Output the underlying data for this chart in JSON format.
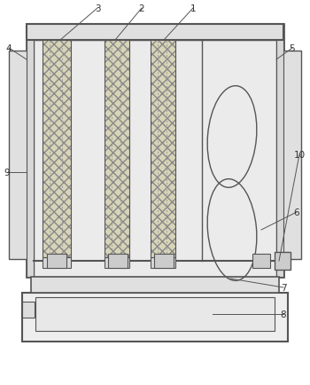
{
  "bg_color": "#ffffff",
  "dc": "#555555",
  "lc": "#888888",
  "label_color": "#333333",
  "filter_fc": "#d8d4b8",
  "light_gray": "#e8e8e8",
  "mid_gray": "#d0d0d0",
  "bg_inner": "#ebebeb"
}
